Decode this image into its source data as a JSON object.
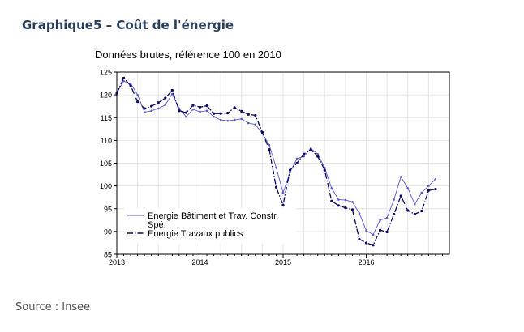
{
  "page": {
    "title": "Graphique5 – Coût de l'énergie",
    "source": "Source : Insee"
  },
  "colors": {
    "title": "#2b3e5c",
    "series_1": "#5a5acd",
    "series_2": "#0a0a64",
    "grid": "#e6e6e6"
  },
  "chart_data": {
    "type": "line",
    "title": "Données brutes, référence 100 en 2010",
    "xlabel": "",
    "ylabel": "",
    "xlim": [
      2013,
      2017
    ],
    "ylim": [
      85,
      125
    ],
    "ytick_values": [
      85,
      90,
      95,
      100,
      105,
      110,
      115,
      120,
      125
    ],
    "ytick_labels": [
      "85",
      "90",
      "95",
      "100",
      "105",
      "110",
      "115",
      "120",
      "125"
    ],
    "xtick_values": [
      2013,
      2014,
      2015,
      2016
    ],
    "xtick_labels": [
      "2013",
      "2014",
      "2015",
      "2016"
    ],
    "grid": true,
    "legend_position": "bottom-left",
    "series": [
      {
        "name": "Energie Bâtiment et Trav. Constr. Spé.",
        "style": "solid",
        "values": [
          120.5,
          123.0,
          122.5,
          120.0,
          116.2,
          116.5,
          117.0,
          117.8,
          120.2,
          117.0,
          115.2,
          116.8,
          116.3,
          116.5,
          115.2,
          114.5,
          114.3,
          114.5,
          114.7,
          113.8,
          113.5,
          111.5,
          109.0,
          104.0,
          98.5,
          103.0,
          106.0,
          106.5,
          108.2,
          107.0,
          104.0,
          99.5,
          97.0,
          96.9,
          96.5,
          94.0,
          90.2,
          89.3,
          92.5,
          93.0,
          97.0,
          102.0,
          99.5,
          96.0,
          98.5,
          100.0,
          101.5
        ]
      },
      {
        "name": "Energie Travaux publics",
        "style": "dash-dot",
        "values": [
          120.3,
          123.7,
          122.0,
          118.5,
          117.0,
          117.5,
          118.3,
          119.3,
          121.0,
          116.5,
          116.1,
          117.7,
          117.3,
          117.6,
          115.9,
          115.9,
          116.0,
          117.2,
          116.4,
          115.7,
          115.5,
          111.8,
          108.0,
          99.7,
          95.8,
          103.5,
          105.0,
          107.0,
          108.0,
          106.5,
          103.5,
          96.7,
          95.7,
          95.2,
          94.8,
          88.3,
          87.5,
          87.0,
          90.3,
          89.9,
          93.8,
          97.8,
          94.6,
          93.8,
          94.5,
          99.0,
          99.3
        ]
      }
    ]
  }
}
